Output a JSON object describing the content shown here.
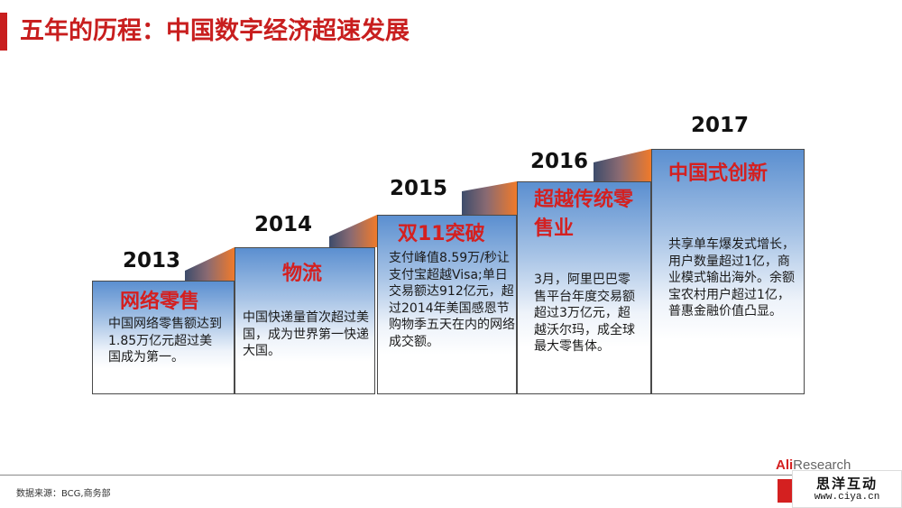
{
  "title": "五年的历程：中国数字经济超速发展",
  "colors": {
    "accent": "#c81e1e",
    "box_title": "#d42020",
    "connector_dark": "#3d4c6b",
    "connector_orange": "#f07a2a"
  },
  "steps": [
    {
      "year": "2013",
      "title": "网络零售",
      "body": "中国网络零售额达到1.85万亿元超过美国成为第一。"
    },
    {
      "year": "2014",
      "title": "物流",
      "body": "中国快递量首次超过美国，成为世界第一快递大国。"
    },
    {
      "year": "2015",
      "title": "双11突破",
      "body": "支付峰值8.59万/秒让支付宝超越Visa;单日交易额达912亿元，超过2014年美国感恩节购物季五天在内的网络成交额。"
    },
    {
      "year": "2016",
      "title": "超越传统零售业",
      "body": "3月，阿里巴巴零售平台年度交易额超过3万亿元，超越沃尔玛，成全球最大零售体。"
    },
    {
      "year": "2017",
      "title": "中国式创新",
      "body": "共享单车爆发式增长，用户数量超过1亿，商业模式输出海外。余额宝农村用户超过1亿，普惠金融价值凸显。"
    }
  ],
  "footer": {
    "source": "数据来源：BCG,商务部",
    "logo_red": "Ali",
    "logo_grey": "Research",
    "watermark_cn": "思洋互动",
    "watermark_url": "www.ciya.cn"
  }
}
